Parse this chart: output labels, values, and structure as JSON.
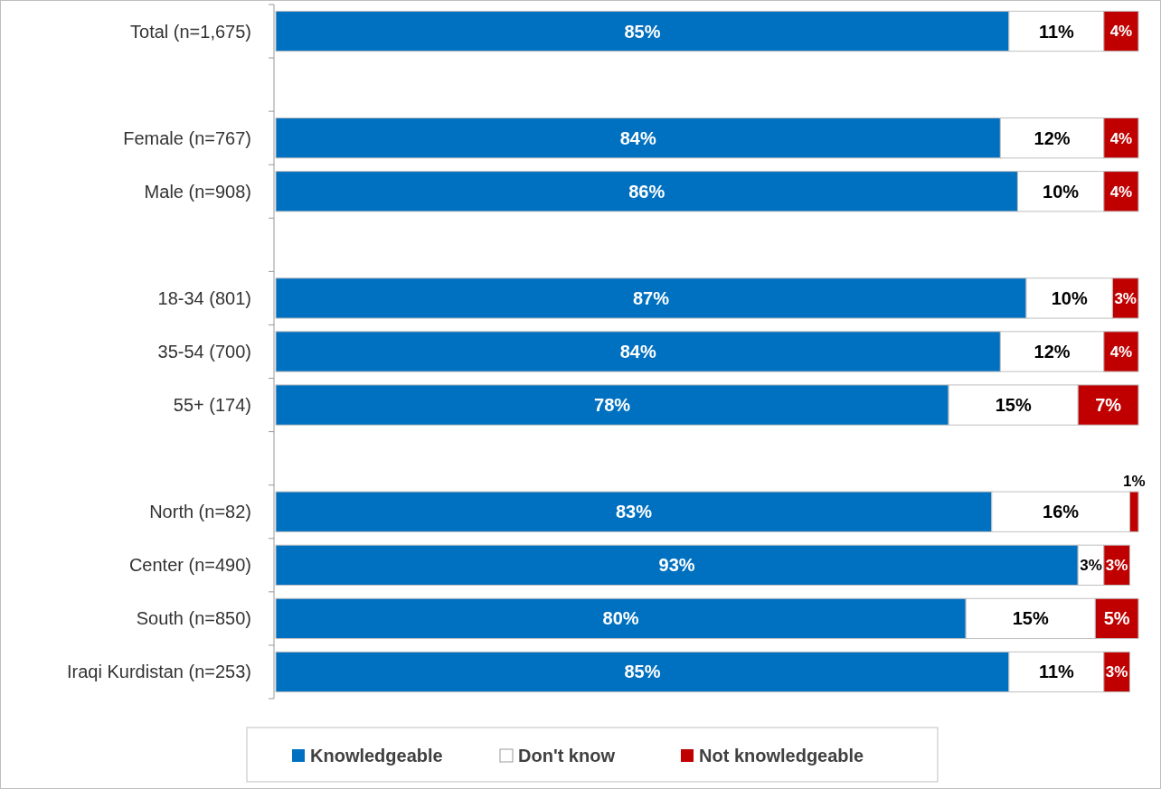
{
  "chart_data": {
    "type": "bar",
    "orientation": "horizontal",
    "stacked": true,
    "legend": "bottom",
    "tick_labels": "y",
    "categories": [
      "Total (n=1,675)",
      null,
      "Female (n=767)",
      "Male (n=908)",
      null,
      "18-34 (801)",
      "35-54 (700)",
      "55+ (174)",
      null,
      "North (n=82)",
      "Center (n=490)",
      "South (n=850)",
      "Iraqi Kurdistan (n=253)"
    ],
    "series": [
      {
        "name": "Knowledgeable",
        "color": "#0070c0",
        "values": [
          85,
          null,
          84,
          86,
          null,
          87,
          84,
          78,
          null,
          83,
          93,
          80,
          85
        ],
        "value_labels": [
          "85%",
          null,
          "84%",
          "86%",
          null,
          "87%",
          "84%",
          "78%",
          null,
          "83%",
          "93%",
          "80%",
          "85%"
        ]
      },
      {
        "name": "Don't know",
        "color": "#ffffff",
        "values": [
          11,
          null,
          12,
          10,
          null,
          10,
          12,
          15,
          null,
          16,
          3,
          15,
          11
        ],
        "value_labels": [
          "11%",
          null,
          "12%",
          "10%",
          null,
          "10%",
          "12%",
          "15%",
          null,
          "16%",
          "3%",
          "15%",
          "11%"
        ]
      },
      {
        "name": "Not knowledgeable",
        "color": "#c00000",
        "values": [
          4,
          null,
          4,
          4,
          null,
          3,
          4,
          7,
          null,
          1,
          3,
          5,
          3
        ],
        "value_labels": [
          "4%",
          null,
          "4%",
          "4%",
          null,
          "3%",
          "4%",
          "7%",
          null,
          "1%",
          "3%",
          "5%",
          "3%"
        ]
      }
    ]
  }
}
